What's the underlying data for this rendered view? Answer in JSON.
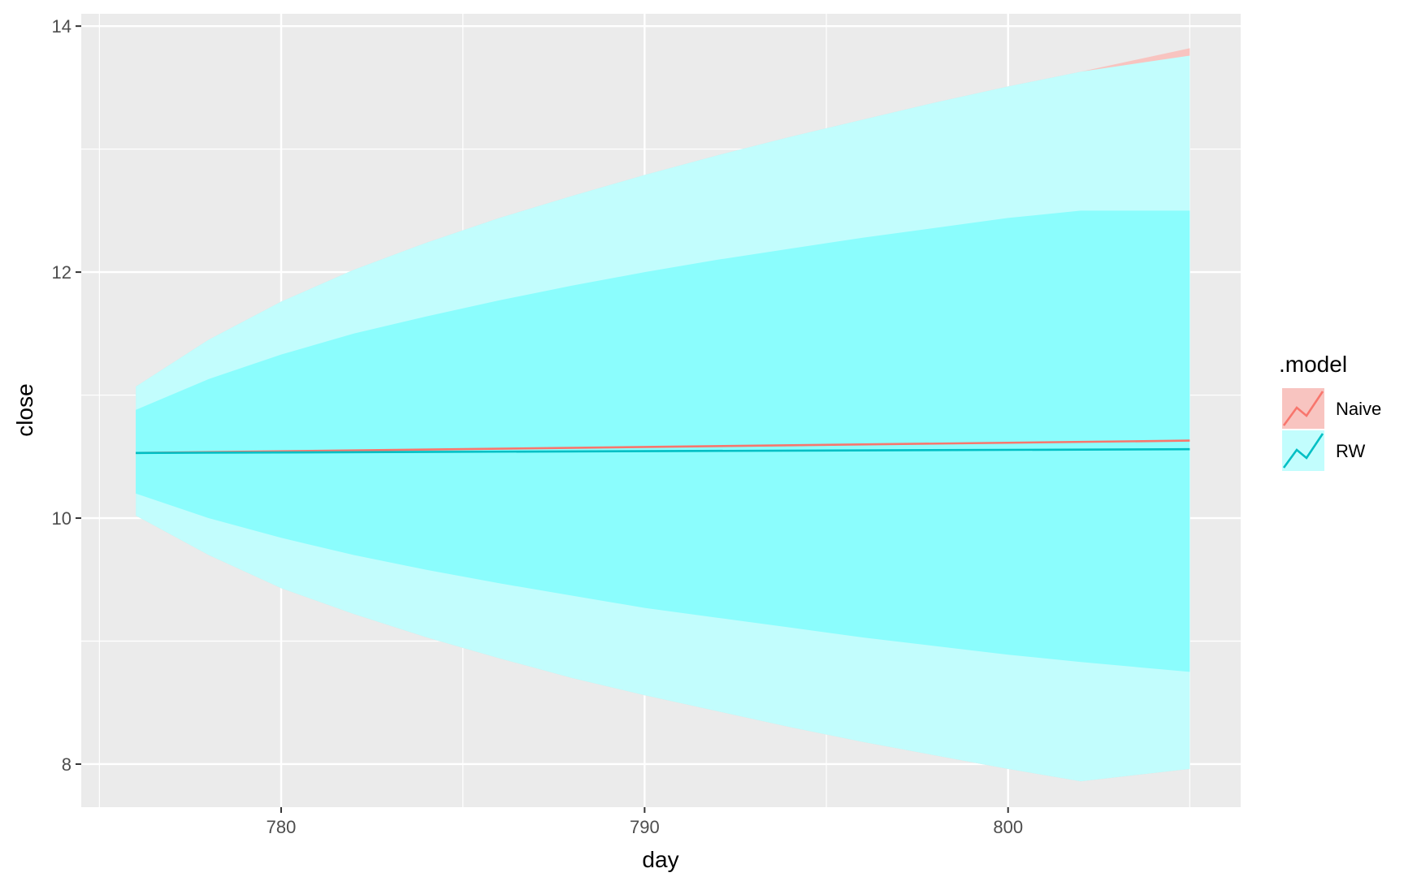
{
  "chart_data": {
    "type": "line",
    "title": "",
    "xlabel": "day",
    "ylabel": "close",
    "xlim": [
      774.5,
      806.4
    ],
    "ylim": [
      7.65,
      14.1
    ],
    "x_ticks": [
      780,
      790,
      800
    ],
    "y_ticks": [
      8,
      10,
      12,
      14
    ],
    "x_tick_labels": [
      "780",
      "790",
      "800"
    ],
    "y_tick_labels": [
      "8",
      "10",
      "12",
      "14"
    ],
    "grid": true,
    "legend": {
      "title": ".model",
      "position": "right"
    },
    "series": [
      {
        "name": "Naive",
        "color": "#F8766D",
        "fill_color": "#F8C4C0",
        "x": [
          776,
          805
        ],
        "y": [
          10.53,
          10.63
        ],
        "upper_95": [
          [
            776,
            11.07
          ],
          [
            778,
            11.45
          ],
          [
            780,
            11.76
          ],
          [
            782,
            12.02
          ],
          [
            784,
            12.24
          ],
          [
            786,
            12.44
          ],
          [
            788,
            12.62
          ],
          [
            790,
            12.79
          ],
          [
            792,
            12.95
          ],
          [
            794,
            13.1
          ],
          [
            796,
            13.24
          ],
          [
            798,
            13.38
          ],
          [
            800,
            13.51
          ],
          [
            802,
            13.63
          ],
          [
            805,
            13.82
          ]
        ]
      },
      {
        "name": "RW",
        "color": "#00BFC4",
        "fill_color": "#C2FDFD",
        "x": [
          776,
          805
        ],
        "y": [
          10.53,
          10.56
        ],
        "upper_95": [
          [
            776,
            11.07
          ],
          [
            778,
            11.45
          ],
          [
            780,
            11.76
          ],
          [
            782,
            12.02
          ],
          [
            784,
            12.24
          ],
          [
            786,
            12.44
          ],
          [
            788,
            12.62
          ],
          [
            790,
            12.79
          ],
          [
            792,
            12.95
          ],
          [
            794,
            13.1
          ],
          [
            796,
            13.24
          ],
          [
            798,
            13.38
          ],
          [
            800,
            13.51
          ],
          [
            802,
            13.63
          ],
          [
            805,
            13.76
          ]
        ],
        "upper_80": [
          [
            776,
            10.88
          ],
          [
            778,
            11.13
          ],
          [
            780,
            11.33
          ],
          [
            782,
            11.5
          ],
          [
            784,
            11.64
          ],
          [
            786,
            11.77
          ],
          [
            788,
            11.89
          ],
          [
            790,
            12.0
          ],
          [
            792,
            12.1
          ],
          [
            794,
            12.19
          ],
          [
            796,
            12.28
          ],
          [
            798,
            12.36
          ],
          [
            800,
            12.44
          ],
          [
            802,
            12.5
          ],
          [
            805,
            12.5
          ]
        ],
        "lower_80": [
          [
            776,
            10.2
          ],
          [
            778,
            10.0
          ],
          [
            780,
            9.84
          ],
          [
            782,
            9.7
          ],
          [
            784,
            9.58
          ],
          [
            786,
            9.47
          ],
          [
            788,
            9.37
          ],
          [
            790,
            9.27
          ],
          [
            792,
            9.19
          ],
          [
            794,
            9.11
          ],
          [
            796,
            9.03
          ],
          [
            798,
            8.96
          ],
          [
            800,
            8.89
          ],
          [
            802,
            8.83
          ],
          [
            805,
            8.75
          ]
        ],
        "lower_95": [
          [
            776,
            10.02
          ],
          [
            778,
            9.7
          ],
          [
            780,
            9.43
          ],
          [
            782,
            9.22
          ],
          [
            784,
            9.03
          ],
          [
            786,
            8.86
          ],
          [
            788,
            8.7
          ],
          [
            790,
            8.56
          ],
          [
            792,
            8.43
          ],
          [
            794,
            8.3
          ],
          [
            796,
            8.18
          ],
          [
            798,
            8.07
          ],
          [
            800,
            7.96
          ],
          [
            802,
            7.86
          ],
          [
            805,
            7.96
          ]
        ]
      }
    ]
  }
}
